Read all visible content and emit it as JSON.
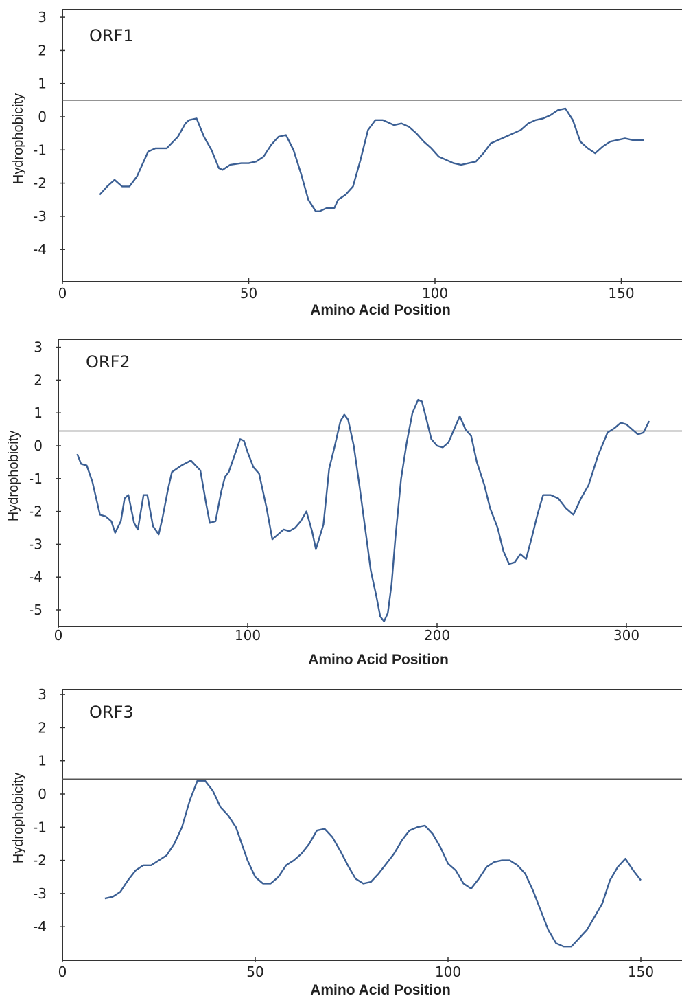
{
  "chart_data": [
    {
      "type": "line",
      "title": "ORF1",
      "xlabel": "Amino Acid Position",
      "ylabel": "Hydrophobicity",
      "xlim": [
        0,
        165
      ],
      "ylim": [
        -5,
        3.3
      ],
      "xticks": [
        "0",
        "50",
        "100",
        "150"
      ],
      "yticks": [
        "3",
        "2",
        "1",
        "0",
        "-1",
        "-2",
        "-3",
        "-4"
      ],
      "threshold": 0.5,
      "line_color": "#3b5f94",
      "series": [
        {
          "x": [
            10,
            12,
            14,
            15,
            16,
            18,
            20,
            22,
            23,
            25,
            28,
            31,
            33,
            34,
            36,
            38,
            40,
            42,
            43,
            45,
            48,
            50,
            52,
            54,
            56,
            58,
            60,
            62,
            64,
            66,
            68,
            69,
            71,
            73,
            74,
            76,
            78,
            80,
            82,
            84,
            86,
            87,
            89,
            91,
            93,
            95,
            97,
            99,
            101,
            103,
            105,
            107,
            109,
            111,
            113,
            115,
            117,
            119,
            121,
            123,
            125,
            127,
            129,
            131,
            133,
            135,
            137,
            139,
            141,
            143,
            145,
            147,
            149,
            151,
            153,
            156
          ],
          "y": [
            -2.35,
            -2.1,
            -1.9,
            -2.0,
            -2.1,
            -2.1,
            -1.8,
            -1.3,
            -1.05,
            -0.95,
            -0.95,
            -0.6,
            -0.2,
            -0.1,
            -0.05,
            -0.6,
            -1.0,
            -1.55,
            -1.6,
            -1.45,
            -1.4,
            -1.4,
            -1.35,
            -1.2,
            -0.85,
            -0.6,
            -0.55,
            -1.0,
            -1.7,
            -2.5,
            -2.85,
            -2.85,
            -2.75,
            -2.75,
            -2.5,
            -2.35,
            -2.1,
            -1.3,
            -0.4,
            -0.1,
            -0.1,
            -0.15,
            -0.25,
            -0.2,
            -0.3,
            -0.5,
            -0.75,
            -0.95,
            -1.2,
            -1.3,
            -1.4,
            -1.45,
            -1.4,
            -1.35,
            -1.1,
            -0.8,
            -0.7,
            -0.6,
            -0.5,
            -0.4,
            -0.2,
            -0.1,
            -0.05,
            0.05,
            0.2,
            0.25,
            -0.1,
            -0.75,
            -0.95,
            -1.1,
            -0.9,
            -0.75,
            -0.7,
            -0.65,
            -0.7,
            -0.7
          ]
        }
      ]
    },
    {
      "type": "line",
      "title": "ORF2",
      "xlabel": "Amino Acid Position",
      "ylabel": "Hydrophobicity",
      "xlim": [
        0,
        330
      ],
      "ylim": [
        -5.4,
        3.3
      ],
      "xticks": [
        "0",
        "100",
        "200",
        "300"
      ],
      "yticks": [
        "3",
        "2",
        "1",
        "0",
        "-1",
        "-2",
        "-3",
        "-4",
        "-5"
      ],
      "threshold": 0.45,
      "line_color": "#3b5f94",
      "series": [
        {
          "x": [
            10,
            12,
            15,
            18,
            20,
            22,
            25,
            28,
            30,
            33,
            35,
            37,
            40,
            42,
            45,
            47,
            50,
            53,
            55,
            58,
            60,
            65,
            70,
            75,
            78,
            80,
            83,
            86,
            88,
            90,
            93,
            96,
            98,
            100,
            103,
            106,
            110,
            113,
            116,
            119,
            122,
            125,
            128,
            131,
            134,
            136,
            140,
            143,
            146,
            149,
            151,
            153,
            156,
            159,
            162,
            165,
            168,
            170,
            172,
            174,
            176,
            178,
            181,
            184,
            187,
            190,
            192,
            194,
            197,
            200,
            203,
            206,
            209,
            212,
            215,
            218,
            221,
            225,
            228,
            232,
            235,
            238,
            241,
            244,
            247,
            250,
            253,
            256,
            260,
            264,
            268,
            272,
            276,
            280,
            285,
            290,
            294,
            297,
            300,
            303,
            306,
            309,
            312
          ],
          "y": [
            -0.25,
            -0.55,
            -0.6,
            -1.1,
            -1.6,
            -2.1,
            -2.15,
            -2.3,
            -2.65,
            -2.3,
            -1.6,
            -1.5,
            -2.35,
            -2.55,
            -1.5,
            -1.5,
            -2.45,
            -2.7,
            -2.2,
            -1.3,
            -0.8,
            -0.6,
            -0.45,
            -0.75,
            -1.75,
            -2.35,
            -2.3,
            -1.4,
            -0.95,
            -0.8,
            -0.3,
            0.2,
            0.15,
            -0.2,
            -0.65,
            -0.85,
            -1.9,
            -2.85,
            -2.7,
            -2.55,
            -2.6,
            -2.5,
            -2.3,
            -2.0,
            -2.6,
            -3.15,
            -2.4,
            -0.7,
            0.0,
            0.75,
            0.95,
            0.8,
            0.0,
            -1.2,
            -2.5,
            -3.8,
            -4.6,
            -5.2,
            -5.35,
            -5.1,
            -4.2,
            -2.8,
            -1.0,
            0.1,
            1.0,
            1.4,
            1.35,
            0.9,
            0.2,
            0.0,
            -0.05,
            0.1,
            0.5,
            0.9,
            0.5,
            0.3,
            -0.5,
            -1.2,
            -1.9,
            -2.5,
            -3.2,
            -3.6,
            -3.55,
            -3.3,
            -3.45,
            -2.8,
            -2.1,
            -1.5,
            -1.5,
            -1.6,
            -1.9,
            -2.1,
            -1.6,
            -1.2,
            -0.3,
            0.4,
            0.55,
            0.7,
            0.65,
            0.5,
            0.35,
            0.4,
            0.75
          ]
        }
      ]
    },
    {
      "type": "line",
      "title": "ORF3",
      "xlabel": "Amino Acid Position",
      "ylabel": "Hydrophobicity",
      "xlim": [
        0,
        162
      ],
      "ylim": [
        -5,
        3.3
      ],
      "xticks": [
        "0",
        "50",
        "100",
        "150"
      ],
      "yticks": [
        "3",
        "2",
        "1",
        "0",
        "-1",
        "-2",
        "-3",
        "-4"
      ],
      "threshold": 0.45,
      "line_color": "#3b5f94",
      "series": [
        {
          "x": [
            11,
            13,
            15,
            17,
            19,
            21,
            23,
            25,
            27,
            29,
            31,
            33,
            35,
            37,
            39,
            41,
            43,
            45,
            48,
            50,
            52,
            54,
            56,
            58,
            60,
            62,
            64,
            66,
            68,
            70,
            72,
            74,
            76,
            78,
            80,
            82,
            84,
            86,
            88,
            90,
            92,
            94,
            96,
            98,
            100,
            102,
            104,
            106,
            108,
            110,
            112,
            114,
            116,
            118,
            120,
            122,
            124,
            126,
            128,
            130,
            132,
            134,
            136,
            138,
            140,
            142,
            144,
            146,
            148,
            150
          ],
          "y": [
            -3.15,
            -3.1,
            -2.95,
            -2.6,
            -2.3,
            -2.15,
            -2.15,
            -2.0,
            -1.85,
            -1.5,
            -1.0,
            -0.2,
            0.4,
            0.4,
            0.1,
            -0.4,
            -0.65,
            -1.0,
            -2.0,
            -2.5,
            -2.7,
            -2.7,
            -2.5,
            -2.15,
            -2.0,
            -1.8,
            -1.5,
            -1.1,
            -1.05,
            -1.3,
            -1.7,
            -2.15,
            -2.55,
            -2.7,
            -2.65,
            -2.4,
            -2.1,
            -1.8,
            -1.4,
            -1.1,
            -1.0,
            -0.95,
            -1.2,
            -1.6,
            -2.1,
            -2.3,
            -2.7,
            -2.85,
            -2.55,
            -2.2,
            -2.05,
            -2.0,
            -2.0,
            -2.15,
            -2.4,
            -2.9,
            -3.5,
            -4.1,
            -4.5,
            -4.6,
            -4.6,
            -4.35,
            -4.1,
            -3.7,
            -3.3,
            -2.6,
            -2.2,
            -1.95,
            -2.3,
            -2.6
          ]
        }
      ]
    }
  ]
}
